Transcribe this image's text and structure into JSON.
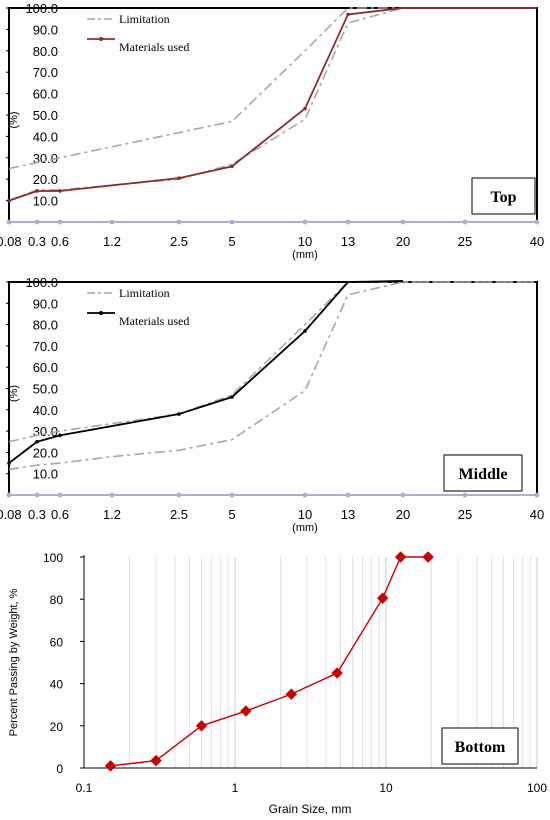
{
  "chart_data": [
    {
      "type": "line",
      "panel_label": "Top",
      "xlabel": "(mm)",
      "ylabel": "(%)",
      "x_tick_labels": [
        "0.08",
        "0.3",
        "0.6",
        "1.2",
        "2.5",
        "5",
        "10",
        "13",
        "20",
        "25",
        "40"
      ],
      "y_tick_labels": [
        "10.0",
        "20.0",
        "30.0",
        "40.0",
        "50.0",
        "60.0",
        "70.0",
        "80.0",
        "90.0",
        "100.0"
      ],
      "ylim": [
        0,
        100
      ],
      "legend_position": "top-left",
      "grid": false,
      "series": [
        {
          "name": "Limitation",
          "style": "dash",
          "color": "#a6a6a6",
          "x": [
            "0.08",
            "5",
            "10",
            "13",
            "20",
            "40"
          ],
          "y": [
            25,
            47,
            80,
            100,
            100,
            100
          ]
        },
        {
          "name": "",
          "style": "dash",
          "color": "#a6a6a6",
          "x": [
            "0.08",
            "0.3",
            "0.6",
            "2.5",
            "5",
            "10",
            "13",
            "20",
            "40"
          ],
          "y": [
            10,
            15,
            15,
            20,
            27,
            48,
            93,
            100,
            100
          ]
        },
        {
          "name": "Materials used",
          "style": "solid-marker",
          "color": "#8b2b2b",
          "x": [
            "0.08",
            "0.3",
            "0.6",
            "2.5",
            "5",
            "10",
            "13",
            "20",
            "40"
          ],
          "y": [
            10,
            14.5,
            14.5,
            20.5,
            26,
            53,
            97,
            100,
            100
          ]
        }
      ]
    },
    {
      "type": "line",
      "panel_label": "Middle",
      "xlabel": "(mm)",
      "ylabel": "(%)",
      "x_tick_labels": [
        "0.08",
        "0.3",
        "0.6",
        "1.2",
        "2.5",
        "5",
        "10",
        "13",
        "20",
        "25",
        "40"
      ],
      "y_tick_labels": [
        "10.0",
        "20.0",
        "30.0",
        "40.0",
        "50.0",
        "60.0",
        "70.0",
        "80.0",
        "90.0",
        "100.0"
      ],
      "ylim": [
        0,
        100
      ],
      "legend_position": "top-left",
      "grid": false,
      "series": [
        {
          "name": "Limitation",
          "style": "dash",
          "color": "#a6a6a6",
          "x": [
            "0.08",
            "0.3",
            "0.6",
            "2.5",
            "5",
            "10",
            "13",
            "20",
            "40"
          ],
          "y": [
            25,
            28,
            30,
            38,
            47,
            80,
            100,
            100,
            100
          ]
        },
        {
          "name": "",
          "style": "dash",
          "color": "#a6a6a6",
          "x": [
            "0.08",
            "0.3",
            "0.6",
            "1.2",
            "2.5",
            "5",
            "10",
            "13",
            "20",
            "40"
          ],
          "y": [
            12,
            14,
            15,
            18,
            21,
            26,
            49,
            94,
            100,
            100
          ]
        },
        {
          "name": "Materials used",
          "style": "solid-marker",
          "color": "#000000",
          "x": [
            "0.08",
            "0.3",
            "0.6",
            "2.5",
            "5",
            "10",
            "13",
            "20"
          ],
          "y": [
            15,
            25,
            28,
            38,
            46,
            77,
            100,
            101
          ]
        }
      ]
    },
    {
      "type": "scatter",
      "panel_label": "Bottom",
      "xlabel": "Grain Size, mm",
      "ylabel": "Percent Passing by Weight, %",
      "x_scale": "log",
      "xlim": [
        0.1,
        100
      ],
      "ylim": [
        0,
        100
      ],
      "x_tick_labels": [
        "0.1",
        "1",
        "10",
        "100"
      ],
      "y_tick_labels": [
        "0",
        "20",
        "40",
        "60",
        "80",
        "100"
      ],
      "grid": true,
      "series": [
        {
          "name": "",
          "color": "#cc0000",
          "marker": "diamond",
          "x": [
            0.15,
            0.3,
            0.6,
            1.18,
            2.36,
            4.75,
            9.5,
            12.5,
            19
          ],
          "y": [
            1,
            3.5,
            20,
            27,
            35,
            45,
            80.5,
            100,
            100
          ]
        }
      ]
    }
  ]
}
